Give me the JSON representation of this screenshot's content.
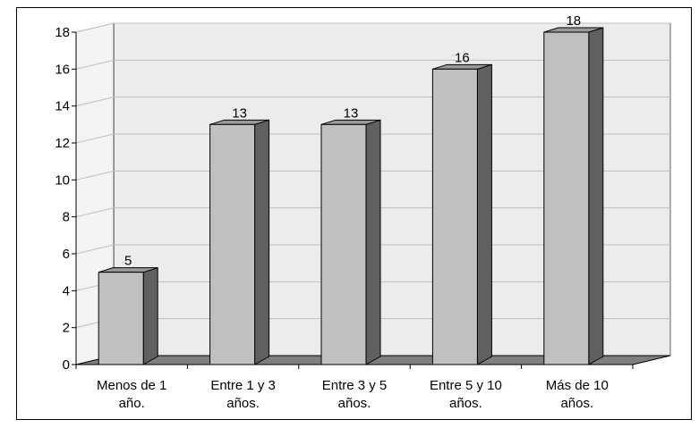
{
  "chart_data": {
    "type": "bar",
    "categories": [
      "Menos de 1 año.",
      "Entre 1 y 3 años.",
      "Entre 3 y 5 años.",
      "Entre 5 y 10 años.",
      "Más de 10 años."
    ],
    "category_lines": [
      [
        "Menos de 1",
        "año."
      ],
      [
        "Entre 1 y 3",
        "años."
      ],
      [
        "Entre 3 y 5",
        "años."
      ],
      [
        "Entre 5 y 10",
        "años."
      ],
      [
        "Más de 10",
        "años."
      ]
    ],
    "values": [
      5,
      13,
      13,
      16,
      18
    ],
    "data_labels": [
      "5",
      "13",
      "13",
      "16",
      "18"
    ],
    "y_ticks": [
      "0",
      "2",
      "4",
      "6",
      "8",
      "10",
      "12",
      "14",
      "16",
      "18"
    ],
    "ylim": [
      0,
      18
    ],
    "grid": true,
    "legend": "none",
    "three_d": true,
    "colors": {
      "bar_front": "#c0c0c0",
      "bar_side": "#606060",
      "bar_top": "#999999",
      "floor": "#7f7f7f",
      "wall": "#ececec",
      "grid": "#bfbfbf"
    }
  }
}
